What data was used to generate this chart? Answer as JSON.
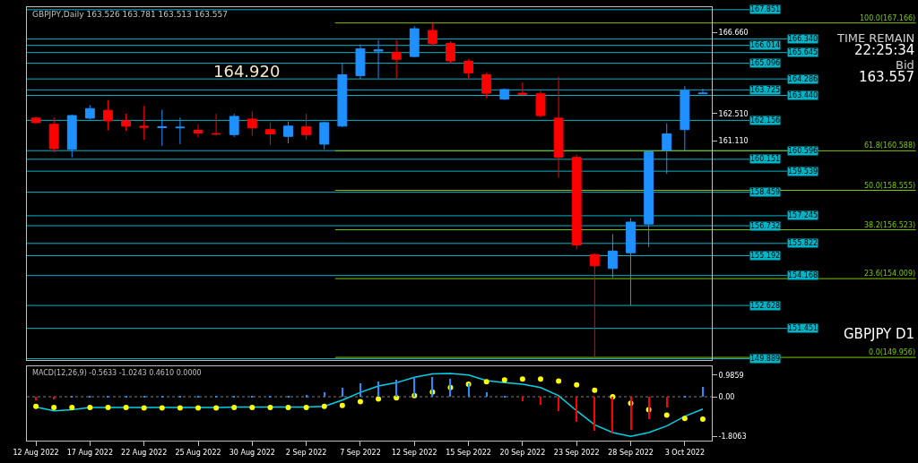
{
  "chart_data": [
    {
      "type": "candlestick",
      "title": "GBPJPY,Daily 163.526 163.781 163.513 163.557",
      "categories": [
        null,
        null,
        null,
        null,
        null,
        null,
        null,
        null,
        null,
        null,
        null,
        null,
        null,
        null,
        null,
        null,
        null,
        null,
        null,
        null,
        null,
        null,
        null,
        null,
        null,
        null,
        null,
        null,
        null,
        null,
        null,
        null,
        null,
        null,
        null,
        null,
        null,
        null
      ],
      "ohlc": [
        [
          162.27,
          162.35,
          162.0,
          162.04
        ],
        [
          161.95,
          162.3,
          160.5,
          160.7
        ],
        [
          160.66,
          162.45,
          160.25,
          162.4
        ],
        [
          162.27,
          162.94,
          162.2,
          162.76
        ],
        [
          162.67,
          163.2,
          161.64,
          162.13
        ],
        [
          162.13,
          162.5,
          161.6,
          161.86
        ],
        [
          161.85,
          162.9,
          161.15,
          161.8
        ],
        [
          161.78,
          162.7,
          160.84,
          161.83
        ],
        [
          161.77,
          162.3,
          160.93,
          161.8
        ],
        [
          161.64,
          161.95,
          161.28,
          161.5
        ],
        [
          161.47,
          162.49,
          161.37,
          161.45
        ],
        [
          161.42,
          162.5,
          161.3,
          162.36
        ],
        [
          162.22,
          162.62,
          161.37,
          161.77
        ],
        [
          161.68,
          162.04,
          160.88,
          161.46
        ],
        [
          161.33,
          162.09,
          160.97,
          161.86
        ],
        [
          161.82,
          162.49,
          161.15,
          161.42
        ],
        [
          160.93,
          162.09,
          160.66,
          162.04
        ],
        [
          161.86,
          165.08,
          161.8,
          164.5
        ],
        [
          164.46,
          166.06,
          164.28,
          165.84
        ],
        [
          165.72,
          166.29,
          164.32,
          165.78
        ],
        [
          165.66,
          166.29,
          164.32,
          165.3
        ],
        [
          165.44,
          167.0,
          165.39,
          166.87
        ],
        [
          166.78,
          167.166,
          166.0,
          166.11
        ],
        [
          166.11,
          166.2,
          165.1,
          165.22
        ],
        [
          165.2,
          165.3,
          164.3,
          164.6
        ],
        [
          164.5,
          164.6,
          163.3,
          163.55
        ],
        [
          163.25,
          163.8,
          163.2,
          163.74
        ],
        [
          163.55,
          164.1,
          163.5,
          163.5
        ],
        [
          163.52,
          163.7,
          162.3,
          162.4
        ],
        [
          162.27,
          164.4,
          159.2,
          160.25
        ],
        [
          160.25,
          160.4,
          155.5,
          155.74
        ],
        [
          155.25,
          155.3,
          149.956,
          154.67
        ],
        [
          154.53,
          156.3,
          154.05,
          155.43
        ],
        [
          155.34,
          157.13,
          152.63,
          156.92
        ],
        [
          156.82,
          160.6,
          155.63,
          160.54
        ],
        [
          160.61,
          162.0,
          159.4,
          161.46
        ],
        [
          161.68,
          163.92,
          160.57,
          163.69
        ],
        [
          163.526,
          163.781,
          163.513,
          163.557
        ]
      ],
      "colors": [
        "#ff0000",
        "#ff0000",
        "#1e90ff",
        "#1e90ff",
        "#ff0000",
        "#ff0000",
        "#ff0000",
        "#1e90ff",
        "#1e90ff",
        "#ff0000",
        "#ff0000",
        "#1e90ff",
        "#ff0000",
        "#ff0000",
        "#1e90ff",
        "#ff0000",
        "#1e90ff",
        "#1e90ff",
        "#1e90ff",
        "#1e90ff",
        "#ff0000",
        "#1e90ff",
        "#ff0000",
        "#ff0000",
        "#ff0000",
        "#ff0000",
        "#1e90ff",
        "#ff0000",
        "#ff0000",
        "#ff0000",
        "#ff0000",
        "#ff0000",
        "#1e90ff",
        "#1e90ff",
        "#1e90ff",
        "#1e90ff",
        "#1e90ff",
        "#1e90ff"
      ],
      "ylim": [
        149.8,
        167.98
      ],
      "yticks": [
        {
          "value": 166.66,
          "label": "166.660"
        },
        {
          "value": 162.51,
          "label": "162.510"
        },
        {
          "value": 161.11,
          "label": "161.110"
        }
      ],
      "tick_labels": "y",
      "ref_lines": [
        {
          "axis": "y",
          "value": 167.851,
          "label": "167.851",
          "color": "#00b4c8"
        },
        {
          "axis": "y",
          "value": 166.34,
          "label": "166.340",
          "color": "#00b4c8"
        },
        {
          "axis": "y",
          "value": 166.014,
          "label": "166.014",
          "color": "#00b4c8"
        },
        {
          "axis": "y",
          "value": 165.645,
          "label": "165.645",
          "color": "#00b4c8"
        },
        {
          "axis": "y",
          "value": 165.096,
          "label": "165.096",
          "color": "#00b4c8"
        },
        {
          "axis": "y",
          "value": 164.286,
          "label": "164.286",
          "color": "#00b4c8"
        },
        {
          "axis": "y",
          "value": 163.725,
          "label": "163.725",
          "color": "#00b4c8"
        },
        {
          "axis": "y",
          "value": 163.44,
          "label": "163.440",
          "color": "#00b4c8"
        },
        {
          "axis": "y",
          "value": 162.156,
          "label": "162.156",
          "color": "#00b4c8"
        },
        {
          "axis": "y",
          "value": 160.596,
          "label": "160.596",
          "color": "#00b4c8"
        },
        {
          "axis": "y",
          "value": 160.151,
          "label": "160.151",
          "color": "#00b4c8"
        },
        {
          "axis": "y",
          "value": 159.539,
          "label": "159.539",
          "color": "#00b4c8"
        },
        {
          "axis": "y",
          "value": 158.459,
          "label": "158.459",
          "color": "#00b4c8"
        },
        {
          "axis": "y",
          "value": 157.245,
          "label": "157.245",
          "color": "#00b4c8"
        },
        {
          "axis": "y",
          "value": 156.732,
          "label": "156.732",
          "color": "#00b4c8"
        },
        {
          "axis": "y",
          "value": 155.822,
          "label": "155.822",
          "color": "#00b4c8"
        },
        {
          "axis": "y",
          "value": 155.192,
          "label": "155.192",
          "color": "#00b4c8"
        },
        {
          "axis": "y",
          "value": 154.168,
          "label": "154.168",
          "color": "#00b4c8"
        },
        {
          "axis": "y",
          "value": 152.628,
          "label": "152.628",
          "color": "#00b4c8"
        },
        {
          "axis": "y",
          "value": 151.451,
          "label": "151.451",
          "color": "#00b4c8"
        },
        {
          "axis": "y",
          "value": 149.889,
          "label": "149.889",
          "color": "#00b4c8"
        },
        {
          "axis": "y",
          "value": 167.166,
          "label": "100.0(167.166)",
          "color": "#7cc800"
        },
        {
          "axis": "y",
          "value": 160.588,
          "label": "61.8(160.588)",
          "color": "#7cc800"
        },
        {
          "axis": "y",
          "value": 158.555,
          "label": "50.0(158.555)",
          "color": "#7cc800"
        },
        {
          "axis": "y",
          "value": 156.523,
          "label": "38.2(156.523)",
          "color": "#7cc800"
        },
        {
          "axis": "y",
          "value": 154.009,
          "label": "23.6(154.009)",
          "color": "#7cc800"
        },
        {
          "axis": "y",
          "value": 149.956,
          "label": "0.0(149.956)",
          "color": "#7cc800"
        }
      ],
      "annotations": [
        "164.920",
        "TIME REMAIN",
        "22:25:34",
        "Bid",
        "163.557",
        "GBPJPY D1"
      ]
    },
    {
      "type": "bar",
      "title": "MACD(12,26,9) -0.5633 -1.0243 0.4610 0.0000",
      "categories": [
        "12 Aug 2022",
        null,
        null,
        "17 Aug 2022",
        null,
        null,
        "22 Aug 2022",
        null,
        null,
        "25 Aug 2022",
        null,
        null,
        "30 Aug 2022",
        null,
        null,
        "2 Sep 2022",
        null,
        null,
        "7 Sep 2022",
        null,
        null,
        "12 Sep 2022",
        null,
        null,
        "15 Sep 2022",
        null,
        null,
        "20 Sep 2022",
        null,
        null,
        "23 Sep 2022",
        null,
        null,
        "28 Sep 2022",
        null,
        null,
        "3 Oct 2022",
        null
      ],
      "series": [
        {
          "type": "bar",
          "colors": [
            "#ff0000",
            "#ff0000",
            "#1e90ff",
            "#1e90ff",
            "#1e90ff",
            "#1e90ff",
            "#1e90ff",
            "#1e90ff",
            "#1e90ff",
            "#1e90ff",
            "#1e90ff",
            "#1e90ff",
            "#1e90ff",
            "#1e90ff",
            "#1e90ff",
            "#1e90ff",
            "#1e90ff",
            "#1e90ff",
            "#1e90ff",
            "#1e90ff",
            "#1e90ff",
            "#1e90ff",
            "#1e90ff",
            "#1e90ff",
            "#1e90ff",
            "#1e90ff",
            "#1e90ff",
            "#ff0000",
            "#ff0000",
            "#ff0000",
            "#ff0000",
            "#ff0000",
            "#ff0000",
            "#ff0000",
            "#ff0000",
            "#ff0000",
            "#1e90ff",
            "#1e90ff"
          ],
          "values": [
            -0.15,
            -0.12,
            0.02,
            0.02,
            0.02,
            0.02,
            0.02,
            0.02,
            0.02,
            0.02,
            0.02,
            0.02,
            0.02,
            0.02,
            0.05,
            0.08,
            0.2,
            0.4,
            0.64,
            0.72,
            0.77,
            0.89,
            0.89,
            0.81,
            0.64,
            0.2,
            0.02,
            -0.2,
            -0.35,
            -0.64,
            -1.14,
            -1.53,
            -1.63,
            -1.51,
            -0.99,
            -0.49,
            0.05,
            0.46
          ]
        },
        {
          "type": "line",
          "color": "#00d2e6",
          "values": [
            -0.47,
            -0.64,
            -0.59,
            -0.49,
            -0.49,
            -0.49,
            -0.49,
            -0.49,
            -0.49,
            -0.49,
            -0.49,
            -0.47,
            -0.47,
            -0.47,
            -0.47,
            -0.47,
            -0.44,
            -0.15,
            0.2,
            0.49,
            0.64,
            0.89,
            1.04,
            1.06,
            0.99,
            0.74,
            0.64,
            0.57,
            0.42,
            0.05,
            -0.64,
            -1.28,
            -1.63,
            -1.81,
            -1.63,
            -1.33,
            -0.89,
            -0.56
          ]
        },
        {
          "type": "scatter",
          "color": "#ffff00",
          "marker": "circle",
          "values": [
            -0.44,
            -0.49,
            -0.49,
            -0.49,
            -0.49,
            -0.49,
            -0.51,
            -0.51,
            -0.51,
            -0.51,
            -0.51,
            -0.49,
            -0.49,
            -0.49,
            -0.49,
            -0.49,
            -0.44,
            -0.4,
            -0.22,
            -0.1,
            -0.05,
            0.05,
            0.22,
            0.42,
            0.57,
            0.69,
            0.77,
            0.81,
            0.81,
            0.72,
            0.54,
            0.3,
            0.0,
            -0.3,
            -0.59,
            -0.84,
            -0.99,
            -1.02
          ]
        }
      ],
      "ylim": [
        -2.0,
        1.4
      ],
      "yticks": [
        {
          "value": 0.9859,
          "label": "0.9859"
        },
        {
          "value": 0,
          "label": "0.00"
        },
        {
          "value": -1.8063,
          "label": "-1.8063"
        }
      ],
      "ref_lines": [
        {
          "axis": "y",
          "value": 0,
          "color": "#808080",
          "line_style": "dotted"
        }
      ]
    }
  ]
}
